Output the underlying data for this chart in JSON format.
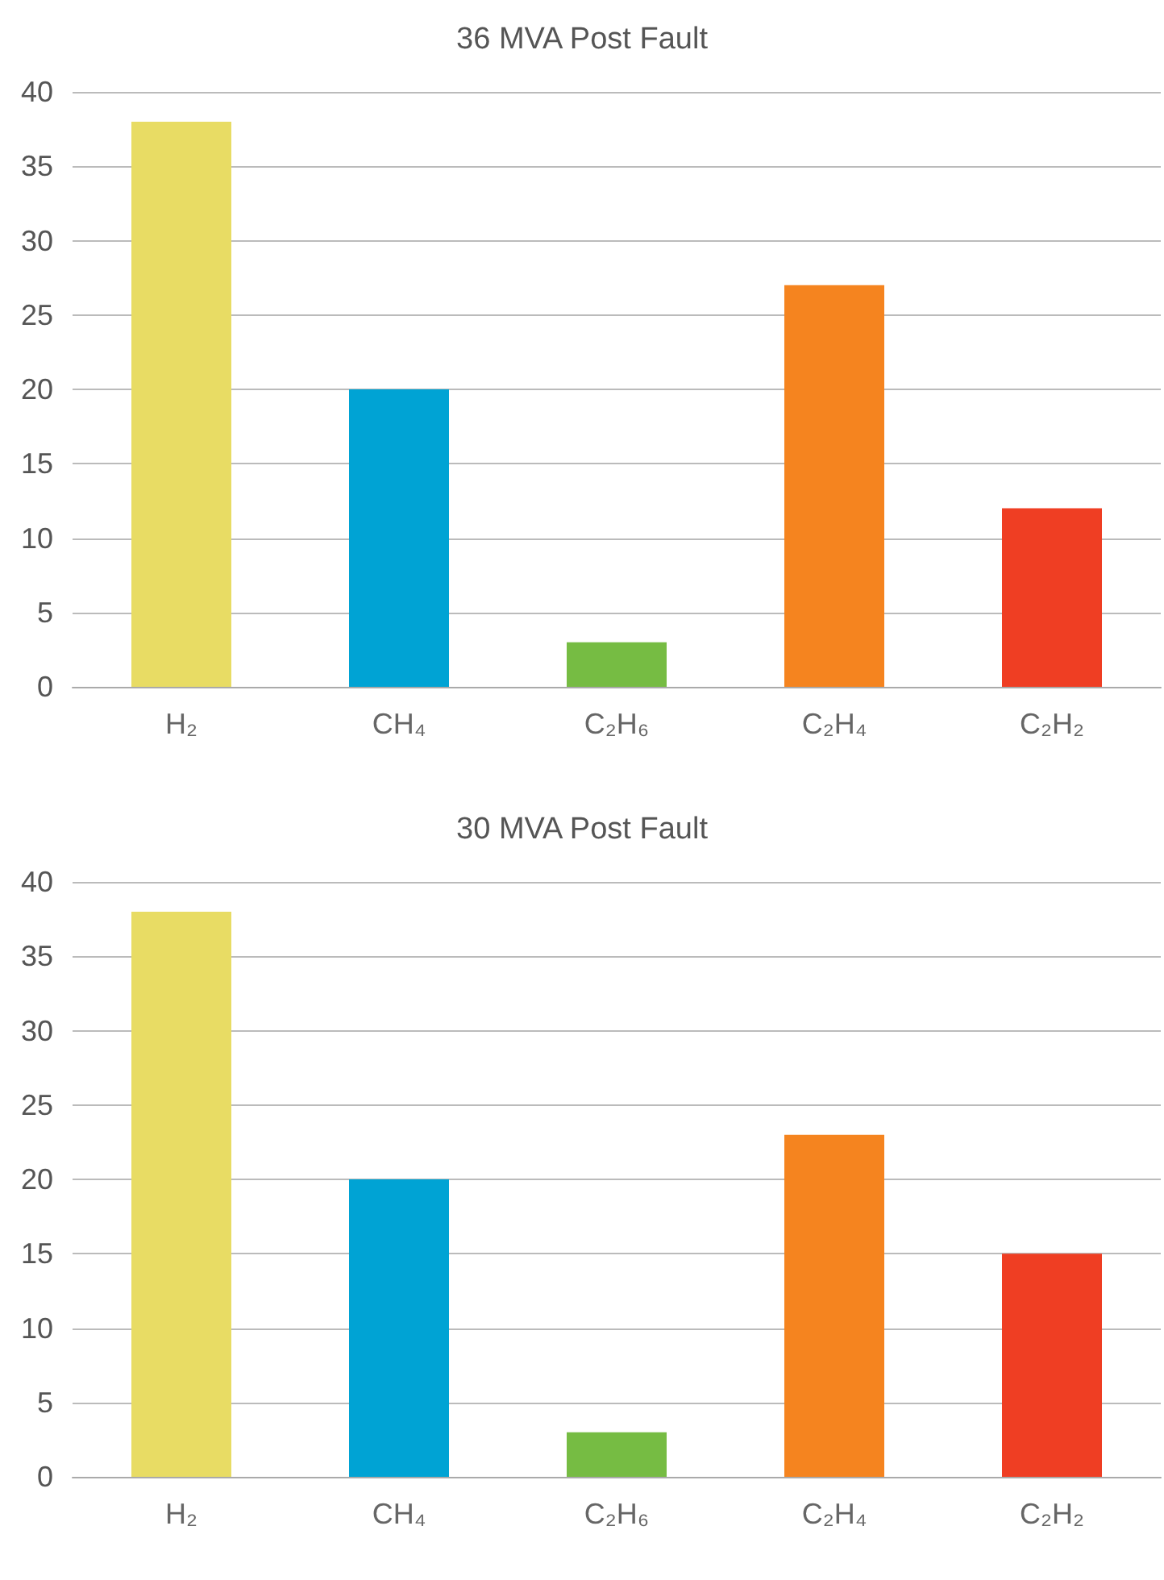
{
  "chart_data": [
    {
      "type": "bar",
      "title": "36 MVA Post Fault",
      "categories": [
        "H₂",
        "CH₄",
        "C₂H₆",
        "C₂H₄",
        "C₂H₂"
      ],
      "values": [
        38,
        20,
        3,
        27,
        12
      ],
      "colors": [
        "#e8dc64",
        "#00a3d4",
        "#76bc43",
        "#f5841f",
        "#ef3e23"
      ],
      "ylim": [
        0,
        40
      ],
      "yticks": [
        0,
        5,
        10,
        15,
        20,
        25,
        30,
        35,
        40
      ],
      "grid": "y"
    },
    {
      "type": "bar",
      "title": "30 MVA Post Fault",
      "categories": [
        "H₂",
        "CH₄",
        "C₂H₆",
        "C₂H₄",
        "C₂H₂"
      ],
      "values": [
        38,
        20,
        3,
        23,
        15
      ],
      "colors": [
        "#e8dc64",
        "#00a3d4",
        "#76bc43",
        "#f5841f",
        "#ef3e23"
      ],
      "ylim": [
        0,
        40
      ],
      "yticks": [
        0,
        5,
        10,
        15,
        20,
        25,
        30,
        35,
        40
      ],
      "grid": "y"
    }
  ]
}
